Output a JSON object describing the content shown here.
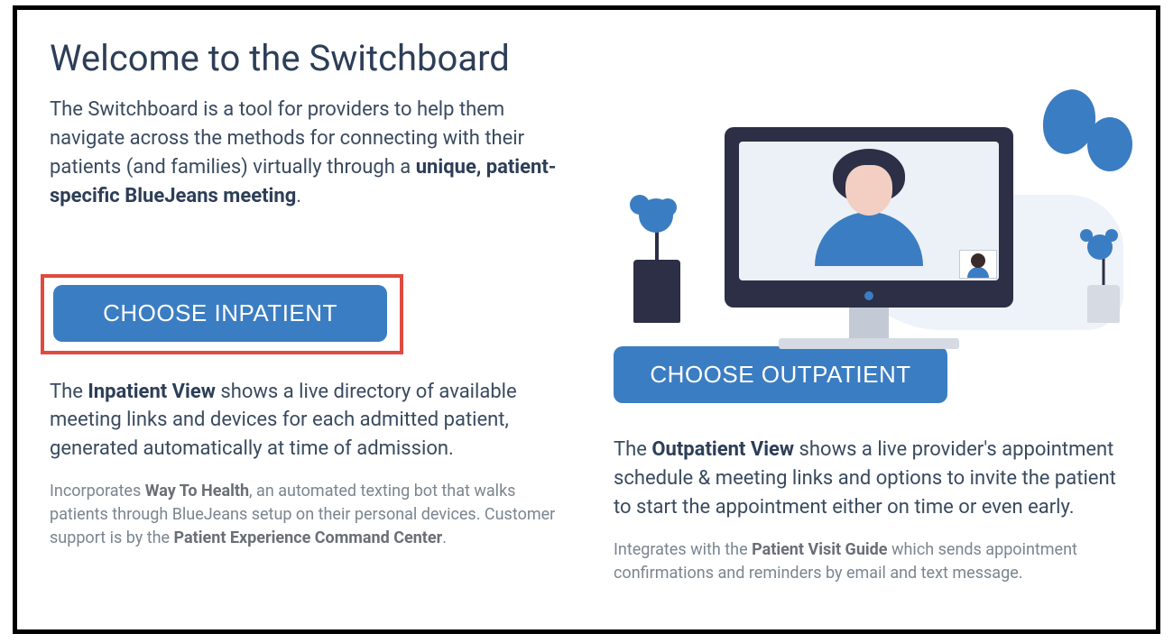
{
  "colors": {
    "title": "#2d3e57",
    "body_text": "#3a4a5f",
    "muted_text": "#7a858f",
    "button_bg": "#3b7dc2",
    "button_text": "#ffffff",
    "highlight_border": "#e04a3f",
    "frame_border": "#000000",
    "illustration_dark": "#2c2f45",
    "illustration_accent": "#3b7dc2",
    "illustration_bg": "#eef2f9",
    "skin": "#f2cfc2"
  },
  "header": {
    "title": "Welcome to the Switchboard"
  },
  "intro": {
    "text_before": "The Switchboard is a tool for providers to help them navigate across the methods for connecting with their patients (and families) virtually through a ",
    "bold": "unique, patient-specific BlueJeans meeting",
    "text_after": "."
  },
  "left": {
    "button_label": "CHOOSE INPATIENT",
    "button_highlighted": true,
    "desc": {
      "before": "The ",
      "bold": "Inpatient View",
      "after": " shows a live directory of available meeting links and devices for each admitted patient, generated automatically at time of admission."
    },
    "note": {
      "p1_before": "Incorporates ",
      "p1_bold": "Way To Health",
      "p1_after": ", an automated texting bot that walks patients through BlueJeans setup on their personal devices. Customer support is by the ",
      "p2_bold": "Patient Experience Command Center",
      "p2_after": "."
    }
  },
  "right": {
    "button_label": "CHOOSE OUTPATIENT",
    "button_highlighted": false,
    "desc": {
      "before": "The ",
      "bold": "Outpatient View",
      "after": " shows a live provider's appointment schedule & meeting links and options to invite the patient to start the appointment either on time or even early."
    },
    "note": {
      "p1_before": "Integrates with the ",
      "p1_bold": "Patient Visit Guide",
      "p1_after": " which sends appointment confirmations and reminders by email and text message."
    }
  }
}
